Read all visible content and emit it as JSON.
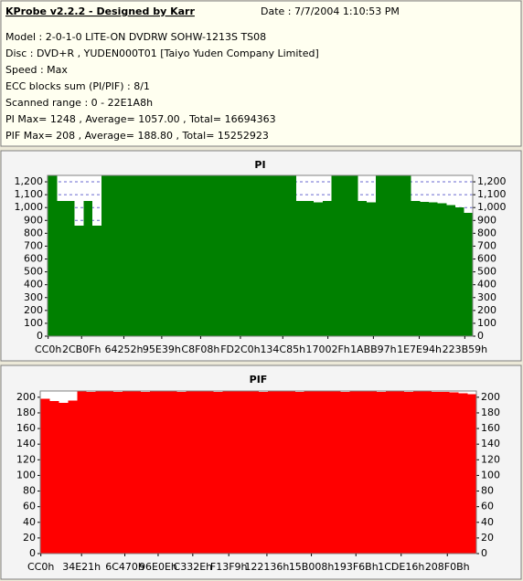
{
  "header": {
    "title": "KProbe v2.2.2 - Designed by Karr",
    "date": "Date : 7/7/2004 1:10:53 PM",
    "lines": [
      "Model : 2-0-1-0 LITE-ON DVDRW SOHW-1213S TS08",
      "Disc : DVD+R , YUDEN000T01 [Taiyo Yuden Company Limited]",
      "Speed : Max",
      "ECC blocks sum (PI/PIF) : 8/1",
      "Scanned range : 0 - 22E1A8h",
      "PI Max= 1248 , Average= 1057.00 , Total= 16694363",
      "PIF Max= 208 , Average= 188.80 , Total= 15252923"
    ]
  },
  "chart_data": [
    {
      "type": "bar",
      "title": "PI",
      "color": "#008000",
      "grid": true,
      "xlim": [
        0,
        2285992
      ],
      "ylim": [
        0,
        1250
      ],
      "xticks": [
        {
          "value": 3264,
          "label": "CC0h"
        },
        {
          "value": 183055,
          "label": "2CB0Fh"
        },
        {
          "value": 410194,
          "label": "64252h"
        },
        {
          "value": 613945,
          "label": "95E39h"
        },
        {
          "value": 823048,
          "label": "C8F08h"
        },
        {
          "value": 1036992,
          "label": "FD2C0h"
        },
        {
          "value": 1264773,
          "label": "134C85h"
        },
        {
          "value": 1507375,
          "label": "17002Fh"
        },
        {
          "value": 1751959,
          "label": "1ABB97h"
        },
        {
          "value": 1998484,
          "label": "1E7E94h"
        },
        {
          "value": 2243417,
          "label": "223B59h"
        }
      ],
      "yticks": [
        0,
        100,
        200,
        300,
        400,
        500,
        600,
        700,
        800,
        900,
        {
          "value": 1000,
          "label": "1,000"
        },
        {
          "value": 1100,
          "label": "1,100"
        },
        {
          "value": 1200,
          "label": "1,200"
        }
      ],
      "x": [
        3264,
        50864,
        98464,
        146064,
        193664,
        241264,
        288864,
        336464,
        384064,
        431664,
        479264,
        526864,
        574464,
        622064,
        669664,
        717264,
        764864,
        812464,
        860064,
        907664,
        955264,
        1002864,
        1050464,
        1098064,
        1145664,
        1193264,
        1240864,
        1288464,
        1336064,
        1383664,
        1431264,
        1478864,
        1526464,
        1574064,
        1621664,
        1669264,
        1716864,
        1764464,
        1812064,
        1859664,
        1907264,
        1954864,
        2002464,
        2050064,
        2097664,
        2145264,
        2192864,
        2240464
      ],
      "values": [
        1248,
        1050,
        1050,
        860,
        1050,
        860,
        1248,
        1248,
        1248,
        1248,
        1248,
        1248,
        1248,
        1248,
        1248,
        1248,
        1248,
        1248,
        1248,
        1248,
        1248,
        1248,
        1248,
        1248,
        1248,
        1248,
        1248,
        1248,
        1050,
        1050,
        1040,
        1050,
        1248,
        1248,
        1248,
        1050,
        1040,
        1248,
        1248,
        1248,
        1248,
        1050,
        1045,
        1040,
        1035,
        1020,
        1000,
        960
      ]
    },
    {
      "type": "bar",
      "title": "PIF",
      "color": "#ff0000",
      "grid": false,
      "xlim": [
        0,
        2285992
      ],
      "ylim": [
        0,
        208
      ],
      "xticks": [
        {
          "value": 3264,
          "label": "CC0h"
        },
        {
          "value": 216609,
          "label": "34E21h"
        },
        {
          "value": 443504,
          "label": "6C470h"
        },
        {
          "value": 617998,
          "label": "96E0Eh"
        },
        {
          "value": 799534,
          "label": "C332Eh"
        },
        {
          "value": 988153,
          "label": "F13F9h"
        },
        {
          "value": 1188150,
          "label": "122136h"
        },
        {
          "value": 1421320,
          "label": "15B008h"
        },
        {
          "value": 1654635,
          "label": "193F6Bh"
        },
        {
          "value": 1891862,
          "label": "1CDE16h"
        },
        {
          "value": 2133771,
          "label": "208F0Bh"
        }
      ],
      "yticks": [
        0,
        20,
        40,
        60,
        80,
        100,
        120,
        140,
        160,
        180,
        200
      ],
      "x": [
        3264,
        50864,
        98464,
        146064,
        193664,
        241264,
        288864,
        336464,
        384064,
        431664,
        479264,
        526864,
        574464,
        622064,
        669664,
        717264,
        764864,
        812464,
        860064,
        907664,
        955264,
        1002864,
        1050464,
        1098064,
        1145664,
        1193264,
        1240864,
        1288464,
        1336064,
        1383664,
        1431264,
        1478864,
        1526464,
        1574064,
        1621664,
        1669264,
        1716864,
        1764464,
        1812064,
        1859664,
        1907264,
        1954864,
        2002464,
        2050064,
        2097664,
        2145264,
        2192864,
        2240464
      ],
      "values": [
        198,
        195,
        193,
        196,
        208,
        207,
        208,
        208,
        207,
        208,
        208,
        207,
        208,
        208,
        208,
        207,
        208,
        208,
        208,
        207,
        208,
        208,
        208,
        208,
        207,
        208,
        208,
        208,
        207,
        208,
        208,
        208,
        208,
        207,
        208,
        208,
        208,
        207,
        208,
        208,
        207,
        208,
        208,
        207,
        207,
        206,
        205,
        204
      ]
    }
  ]
}
